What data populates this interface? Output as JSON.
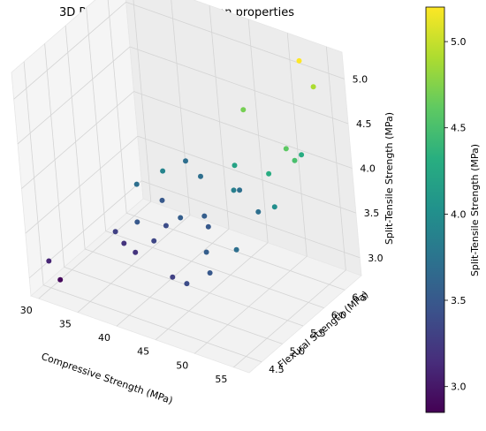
{
  "chart_data": {
    "type": "scatter",
    "projection": "3d",
    "title": "3D Plot: Relationship between properties",
    "xlabel": "Compressive Strength (MPa)",
    "ylabel": "Flexural Strength (MPa)",
    "zlabel": "Split-Tensile Strength (MPa)",
    "xlim": [
      29,
      57
    ],
    "ylim": [
      4.2,
      6.9
    ],
    "zlim": [
      2.8,
      5.3
    ],
    "xticks": [
      "30",
      "35",
      "40",
      "45",
      "50",
      "55"
    ],
    "yticks": [
      "4.5",
      "5.0",
      "5.5",
      "6.0",
      "6.5"
    ],
    "zticks": [
      "3.0",
      "3.5",
      "4.0",
      "4.5",
      "5.0"
    ],
    "colormap": "viridis",
    "colorbar": {
      "label": "Split-Tensile Strength (MPa)",
      "range": [
        2.85,
        5.2
      ],
      "ticks": [
        "3.0",
        "3.5",
        "4.0",
        "4.5",
        "5.0"
      ]
    },
    "grid": true,
    "points": [
      {
        "x": 30,
        "y": 4.5,
        "z": 3.1
      },
      {
        "x": 31,
        "y": 4.55,
        "z": 2.9
      },
      {
        "x": 35,
        "y": 5.2,
        "z": 3.3
      },
      {
        "x": 36,
        "y": 5.2,
        "z": 3.2
      },
      {
        "x": 36,
        "y": 5.6,
        "z": 3.7
      },
      {
        "x": 38,
        "y": 5.1,
        "z": 3.2
      },
      {
        "x": 38,
        "y": 5.2,
        "z": 3.5
      },
      {
        "x": 38,
        "y": 5.8,
        "z": 3.5
      },
      {
        "x": 38,
        "y": 6.4,
        "z": 3.7
      },
      {
        "x": 39,
        "y": 5.7,
        "z": 3.9
      },
      {
        "x": 40,
        "y": 5.2,
        "z": 3.35
      },
      {
        "x": 40,
        "y": 5.5,
        "z": 3.4
      },
      {
        "x": 41,
        "y": 6.2,
        "z": 3.7
      },
      {
        "x": 42,
        "y": 5.5,
        "z": 3.55
      },
      {
        "x": 44,
        "y": 5.7,
        "z": 3.55
      },
      {
        "x": 45,
        "y": 4.7,
        "z": 3.3
      },
      {
        "x": 45,
        "y": 5.6,
        "z": 3.5
      },
      {
        "x": 46,
        "y": 6.2,
        "z": 3.7
      },
      {
        "x": 47,
        "y": 5.9,
        "z": 3.85
      },
      {
        "x": 48,
        "y": 4.5,
        "z": 3.4
      },
      {
        "x": 48,
        "y": 5.0,
        "z": 3.55
      },
      {
        "x": 48,
        "y": 5.8,
        "z": 4.2
      },
      {
        "x": 48,
        "y": 6.1,
        "z": 4.7
      },
      {
        "x": 50,
        "y": 4.7,
        "z": 3.5
      },
      {
        "x": 50,
        "y": 5.9,
        "z": 3.7
      },
      {
        "x": 52,
        "y": 5.0,
        "z": 3.7
      },
      {
        "x": 53,
        "y": 5.7,
        "z": 4.3
      },
      {
        "x": 53,
        "y": 6.6,
        "z": 5.2
      },
      {
        "x": 54,
        "y": 5.6,
        "z": 4.0
      },
      {
        "x": 54,
        "y": 6.3,
        "z": 4.3
      },
      {
        "x": 54,
        "y": 6.7,
        "z": 4.9
      },
      {
        "x": 55,
        "y": 5.8,
        "z": 4.6
      },
      {
        "x": 56,
        "y": 5.8,
        "z": 4.5
      }
    ]
  }
}
